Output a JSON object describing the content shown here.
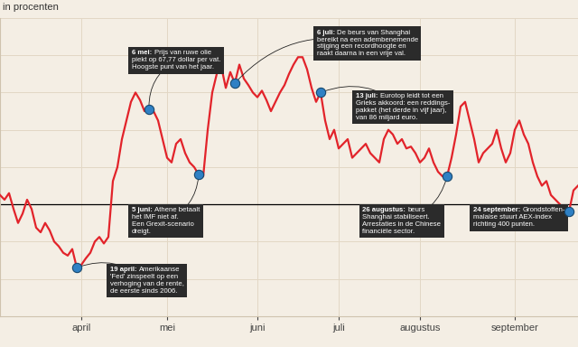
{
  "chart_data": {
    "type": "line",
    "y_label": "in procenten",
    "categories": [
      null,
      null,
      null,
      null,
      null,
      null,
      null,
      null,
      null,
      null,
      null,
      null,
      null,
      null,
      null,
      null,
      null,
      null,
      "april",
      null,
      null,
      null,
      null,
      null,
      null,
      null,
      null,
      null,
      null,
      null,
      null,
      null,
      null,
      null,
      null,
      null,
      null,
      "mei",
      null,
      null,
      null,
      null,
      null,
      null,
      null,
      null,
      null,
      null,
      null,
      null,
      null,
      null,
      null,
      null,
      null,
      null,
      null,
      "juni",
      null,
      null,
      null,
      null,
      null,
      null,
      null,
      null,
      null,
      null,
      null,
      null,
      null,
      null,
      null,
      null,
      null,
      "juli",
      null,
      null,
      null,
      null,
      null,
      null,
      null,
      null,
      null,
      null,
      null,
      null,
      null,
      null,
      null,
      null,
      null,
      "augustus",
      null,
      null,
      null,
      null,
      null,
      null,
      null,
      null,
      null,
      null,
      null,
      null,
      null,
      null,
      null,
      null,
      null,
      null,
      null,
      null,
      "september",
      null,
      null,
      null,
      null,
      null,
      null,
      null,
      null,
      null,
      null,
      null,
      null,
      null,
      null
    ],
    "values": [
      1.0,
      0.5,
      1.2,
      -0.5,
      -2.0,
      -1.0,
      0.5,
      -0.5,
      -2.5,
      -3.0,
      -2.0,
      -2.8,
      -4.0,
      -4.5,
      -5.2,
      -5.5,
      -4.8,
      -6.8,
      -6.5,
      -5.8,
      -5.2,
      -4.0,
      -3.5,
      -4.2,
      -3.5,
      2.5,
      4.0,
      7.0,
      9.0,
      11.0,
      12.0,
      11.2,
      10.0,
      10.2,
      10.0,
      9.0,
      7.0,
      5.0,
      4.5,
      6.5,
      7.0,
      5.5,
      4.5,
      4.0,
      3.2,
      3.0,
      8.0,
      12.0,
      14.0,
      14.8,
      12.5,
      14.2,
      13.0,
      15.0,
      13.5,
      12.8,
      12.0,
      11.5,
      12.2,
      11.2,
      10.0,
      11.0,
      12.0,
      12.8,
      14.0,
      15.0,
      15.8,
      15.8,
      14.5,
      12.5,
      11.0,
      12.0,
      9.0,
      7.0,
      8.0,
      6.0,
      6.5,
      7.0,
      5.0,
      5.5,
      6.0,
      6.5,
      5.5,
      5.0,
      4.5,
      7.0,
      8.0,
      7.5,
      6.5,
      7.0,
      6.0,
      6.2,
      5.5,
      4.5,
      5.0,
      6.0,
      4.5,
      3.5,
      3.0,
      3.0,
      5.0,
      7.5,
      10.5,
      11.0,
      9.0,
      7.0,
      4.5,
      5.5,
      6.0,
      6.5,
      8.0,
      6.0,
      4.5,
      5.5,
      8.0,
      9.0,
      7.5,
      6.5,
      4.5,
      3.0,
      2.0,
      2.5,
      1.0,
      0.5,
      0.0,
      -0.8,
      -0.8,
      1.5,
      2.0
    ],
    "color": "#e2232a",
    "baseline": 0,
    "ylim": [
      -12,
      20
    ],
    "yticks": [
      -12,
      -8,
      -4,
      0,
      4,
      8,
      12,
      16,
      20
    ],
    "grid": true,
    "tick_labels": "x",
    "annotations": [
      {
        "at": 17,
        "date": "19 april:",
        "lines": [
          "Amerikaanse",
          "'Fed' zinspeelt op een",
          "verhoging van de rente,",
          "de eerste sinds 2006."
        ]
      },
      {
        "at": 33,
        "date": "6 mei:",
        "lines": [
          "Prijs van ruwe olie",
          "piekt op 67,77 dollar per vat.",
          "Hoogste punt van het jaar."
        ]
      },
      {
        "at": 44,
        "date": "5 juni:",
        "lines": [
          "Athene betaalt",
          "het IMF niet af.",
          "Een Grexit-scenario",
          "dreigt."
        ]
      },
      {
        "at": 52,
        "date": "6 juli:",
        "lines": [
          "De beurs van Shanghai",
          "bereikt na een adembenemende",
          "stijging een recordhoogte en",
          "raakt daarna in een vrije val."
        ]
      },
      {
        "at": 71,
        "date": "13 juli:",
        "lines": [
          "Eurotop leidt tot een",
          "Grieks akkoord: een reddings-",
          "pakket (het derde in vijf jaar),",
          "van 86 miljard euro."
        ]
      },
      {
        "at": 99,
        "date": "26 augustus:",
        "lines": [
          "beurs",
          "Shanghai stabiliseert.",
          "Arrestaties in de Chinese",
          "financiële sector."
        ]
      },
      {
        "at": 126,
        "date": "24 september:",
        "lines": [
          "Grondstoffen-",
          "malaise stuurt AEX-index",
          "richting 400 punten."
        ]
      }
    ]
  }
}
